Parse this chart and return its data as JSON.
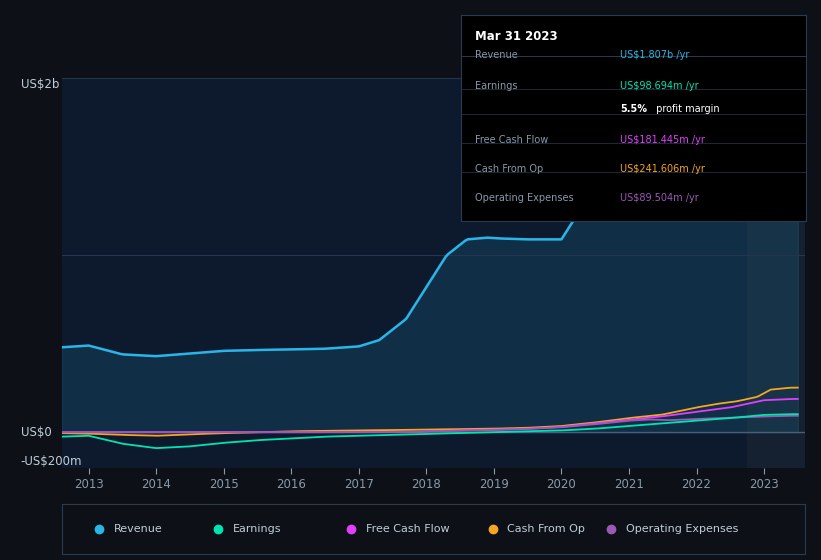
{
  "bg_color": "#0d1117",
  "plot_bg_color": "#0d1a2e",
  "text_color": "#8899aa",
  "series_colors": {
    "Revenue": "#2ab5e8",
    "Earnings": "#00e5b0",
    "Free Cash Flow": "#e040fb",
    "Cash From Op": "#f5a623",
    "Operating Expenses": "#9b59b6"
  },
  "legend_items": [
    {
      "label": "Revenue",
      "color": "#2ab5e8"
    },
    {
      "label": "Earnings",
      "color": "#00e5b0"
    },
    {
      "label": "Free Cash Flow",
      "color": "#e040fb"
    },
    {
      "label": "Cash From Op",
      "color": "#f5a623"
    },
    {
      "label": "Operating Expenses",
      "color": "#9b59b6"
    }
  ],
  "tooltip": {
    "date": "Mar 31 2023",
    "rows": [
      {
        "label": "Revenue",
        "value": "US$1.807b",
        "unit": "/yr",
        "color": "#2ab5e8"
      },
      {
        "label": "Earnings",
        "value": "US$98.694m",
        "unit": "/yr",
        "color": "#00e5b0"
      },
      {
        "label": "",
        "value": "5.5%",
        "extra": " profit margin",
        "unit": "",
        "color": "#ffffff",
        "bold_value": true
      },
      {
        "label": "Free Cash Flow",
        "value": "US$181.445m",
        "unit": "/yr",
        "color": "#e040fb"
      },
      {
        "label": "Cash From Op",
        "value": "US$241.606m",
        "unit": "/yr",
        "color": "#f5a623"
      },
      {
        "label": "Operating Expenses",
        "value": "US$89.504m",
        "unit": "/yr",
        "color": "#9b59b6"
      }
    ]
  },
  "ylabel_top": "US$2b",
  "ylabel_zero": "US$0",
  "ylabel_neg": "-US$200m",
  "xlim": [
    2012.6,
    2023.6
  ],
  "ylim": [
    -200,
    2000
  ],
  "x_ticks": [
    2013,
    2014,
    2015,
    2016,
    2017,
    2018,
    2019,
    2020,
    2021,
    2022,
    2023
  ],
  "highlight_x_start": 2022.75,
  "highlight_x_end": 2023.6,
  "highlight_color": "#152030"
}
